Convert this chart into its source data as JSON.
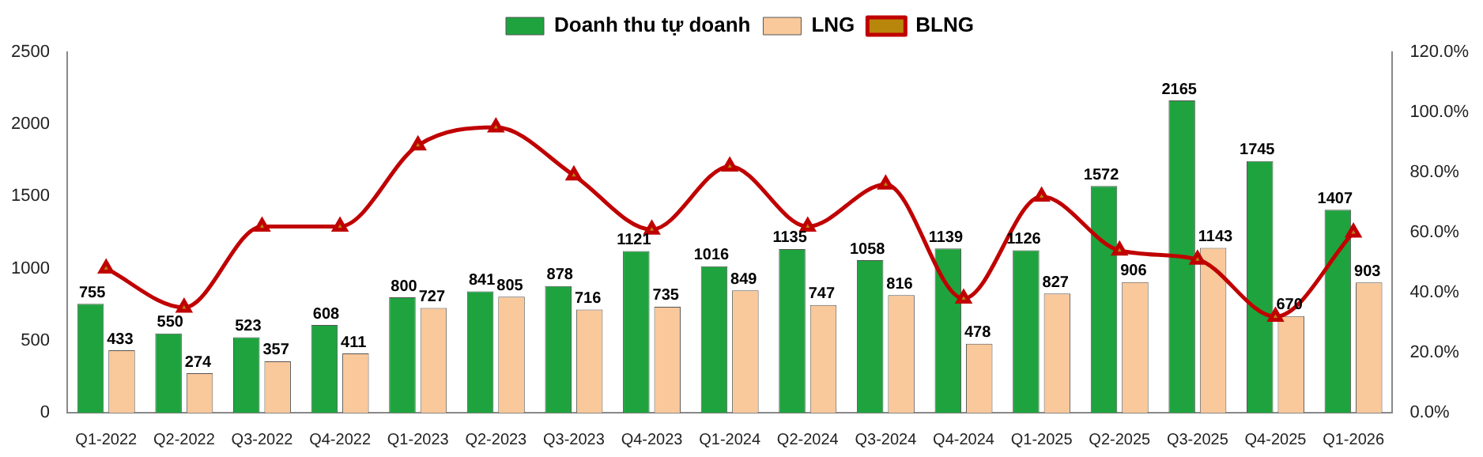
{
  "chart_data": {
    "type": "bar",
    "categories": [
      "Q1-2022",
      "Q2-2022",
      "Q3-2022",
      "Q4-2022",
      "Q1-2023",
      "Q2-2023",
      "Q3-2023",
      "Q4-2023",
      "Q1-2024",
      "Q2-2024",
      "Q3-2024",
      "Q4-2024",
      "Q1-2025",
      "Q2-2025",
      "Q3-2025",
      "Q4-2025",
      "Q1-2026"
    ],
    "series": [
      {
        "name": "Doanh thu tự doanh",
        "color": "#1fa33f",
        "values": [
          755,
          550,
          523,
          608,
          800,
          841,
          878,
          1121,
          1016,
          1135,
          1058,
          1139,
          1126,
          1572,
          2165,
          1745,
          1407
        ],
        "value_labels": [
          "755",
          "550",
          "523",
          "608",
          "800",
          "841",
          "878",
          "1121",
          "1016",
          "1135",
          "1058",
          "1139",
          "1126",
          "1572",
          "2165",
          "1745",
          "1407"
        ]
      },
      {
        "name": "LNG",
        "color": "#f9c89b",
        "values": [
          433,
          274,
          357,
          411,
          727,
          805,
          716,
          735,
          849,
          747,
          816,
          478,
          827,
          906,
          1143,
          670,
          903
        ],
        "value_labels": [
          "433",
          "274",
          "357",
          "411",
          "727",
          "805",
          "716",
          "735",
          "849",
          "747",
          "816",
          "478",
          "827",
          "906",
          "1143",
          "670",
          "903"
        ]
      },
      {
        "name": "BLNG",
        "type": "line",
        "axis": "y2",
        "color": "#c00000",
        "marker": "triangle",
        "values": [
          48,
          35,
          62,
          62,
          89,
          95,
          79,
          61,
          82,
          62,
          76,
          38,
          72,
          54,
          51,
          32,
          60
        ]
      }
    ],
    "ylim": [
      0,
      2500
    ],
    "yticks": [
      0,
      500,
      1000,
      1500,
      2000,
      2500
    ],
    "y2lim": [
      0,
      120
    ],
    "y2ticks": [
      {
        "value": 0,
        "label": "0.0%"
      },
      {
        "value": 20,
        "label": "20.0%"
      },
      {
        "value": 40,
        "label": "40.0%"
      },
      {
        "value": 60,
        "label": "60.0%"
      },
      {
        "value": 80,
        "label": "80.0%"
      },
      {
        "value": 100,
        "label": "100.0%"
      },
      {
        "value": 120,
        "label": "120.0%"
      }
    ],
    "legend": "top",
    "grid": false
  }
}
